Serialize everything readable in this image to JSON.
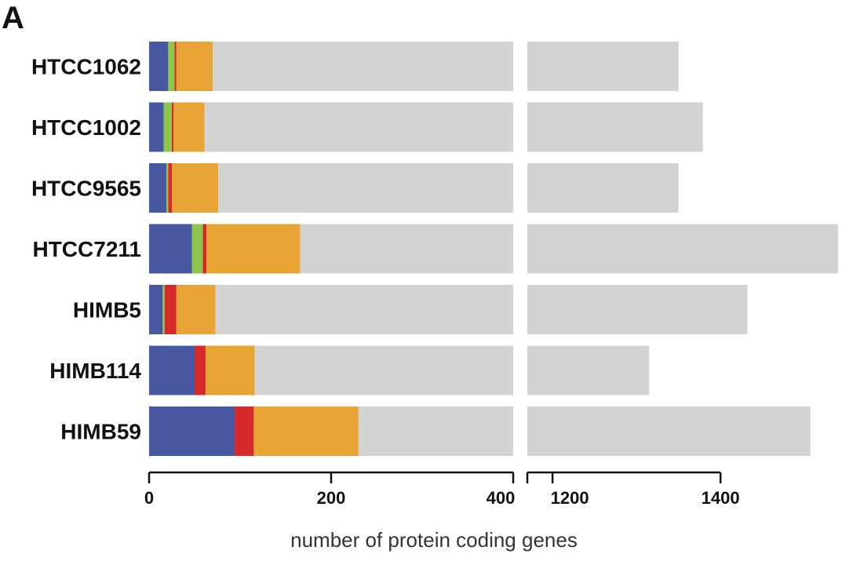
{
  "panel_label": "A",
  "chart_data": {
    "type": "bar",
    "orientation": "horizontal",
    "stacked": true,
    "broken_axis": true,
    "xlabel": "number of protein coding genes",
    "ylabel": "",
    "title": "",
    "categories": [
      "HTCC1062",
      "HTCC1002",
      "HTCC9565",
      "HTCC7211",
      "HIMB5",
      "HIMB114",
      "HIMB59"
    ],
    "x_segments": [
      {
        "range": [
          0,
          400
        ],
        "ticks": [
          0,
          200,
          400
        ]
      },
      {
        "range": [
          1170,
          1540
        ],
        "ticks": [
          1200,
          1400
        ]
      }
    ],
    "series": [
      {
        "color": "#4757a2",
        "values": [
          21,
          16,
          19,
          47,
          15,
          50,
          94
        ]
      },
      {
        "color": "#8fc54a",
        "values": [
          7,
          9,
          2,
          12,
          2,
          0,
          0
        ]
      },
      {
        "color": "#d62a2a",
        "values": [
          2,
          2,
          4,
          4,
          13,
          12,
          21
        ]
      },
      {
        "color": "#e8a535",
        "values": [
          40,
          34,
          51,
          103,
          43,
          54,
          115
        ]
      },
      {
        "color": "#d3d3d3",
        "values": [
          1280,
          1318,
          1274,
          1381,
          1359,
          1199,
          1277
        ]
      }
    ],
    "totals": [
      1350,
      1379,
      1350,
      1547,
      1432,
      1315,
      1507
    ],
    "grid": false,
    "legend": "none"
  }
}
